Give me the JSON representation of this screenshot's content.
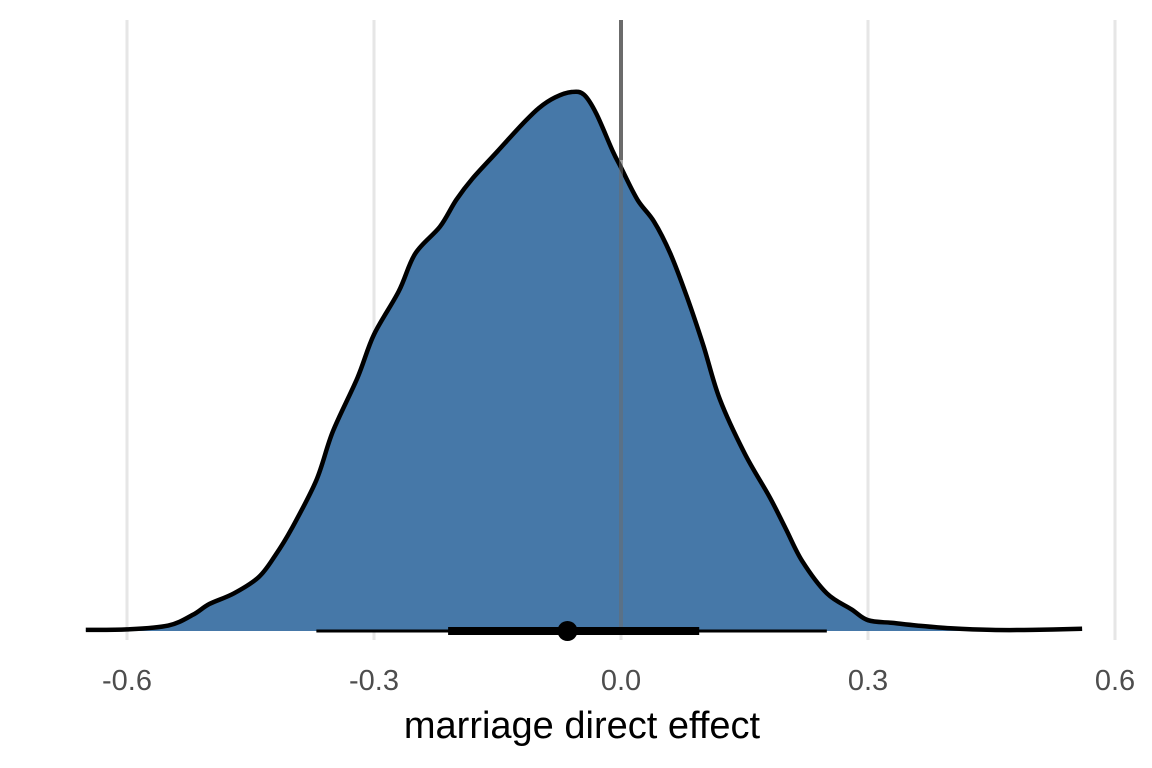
{
  "chart_data": {
    "type": "area",
    "title": "",
    "xlabel": "marriage direct effect",
    "ylabel": "",
    "xlim": [
      -0.6,
      0.6
    ],
    "x_ticks": [
      -0.6,
      -0.3,
      0.0,
      0.3,
      0.6
    ],
    "x_tick_labels": [
      "-0.6",
      "-0.3",
      "0.0",
      "0.3",
      "0.6"
    ],
    "grid": "vertical major gridlines",
    "fill_color": "#4678a8",
    "outline_color": "#000000",
    "reference_line": {
      "x": 0.0,
      "color": "#6b6b6b"
    },
    "density": {
      "x": [
        -0.65,
        -0.6,
        -0.55,
        -0.52,
        -0.5,
        -0.47,
        -0.44,
        -0.42,
        -0.4,
        -0.37,
        -0.35,
        -0.32,
        -0.3,
        -0.27,
        -0.25,
        -0.22,
        -0.2,
        -0.18,
        -0.15,
        -0.12,
        -0.1,
        -0.08,
        -0.06,
        -0.045,
        -0.03,
        -0.01,
        0.0,
        0.02,
        0.04,
        0.06,
        0.08,
        0.1,
        0.12,
        0.15,
        0.18,
        0.2,
        0.22,
        0.25,
        0.28,
        0.3,
        0.33,
        0.36,
        0.4,
        0.45,
        0.5,
        0.56
      ],
      "y": [
        0.002,
        0.003,
        0.01,
        0.03,
        0.05,
        0.07,
        0.1,
        0.14,
        0.19,
        0.28,
        0.37,
        0.47,
        0.55,
        0.63,
        0.7,
        0.75,
        0.8,
        0.84,
        0.89,
        0.94,
        0.97,
        0.99,
        1.0,
        0.995,
        0.96,
        0.89,
        0.86,
        0.8,
        0.76,
        0.7,
        0.62,
        0.53,
        0.43,
        0.33,
        0.25,
        0.19,
        0.13,
        0.07,
        0.04,
        0.02,
        0.015,
        0.01,
        0.005,
        0.002,
        0.002,
        0.004
      ]
    },
    "point_interval": {
      "point": -0.065,
      "inner": [
        -0.21,
        0.095
      ],
      "outer": [
        -0.37,
        0.25
      ]
    }
  }
}
